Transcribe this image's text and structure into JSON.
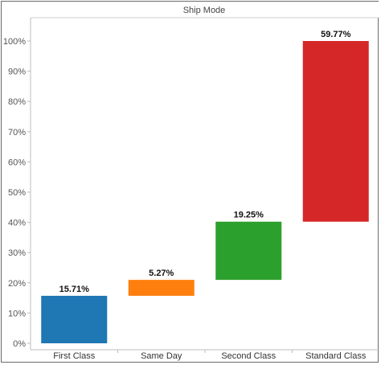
{
  "chart_data": {
    "type": "bar",
    "subtype": "waterfall",
    "title": "Ship Mode",
    "xlabel": "",
    "ylabel": "",
    "categories": [
      "First Class",
      "Same Day",
      "Second Class",
      "Standard Class"
    ],
    "values": [
      15.71,
      5.27,
      19.25,
      59.77
    ],
    "data_labels": [
      "15.71%",
      "5.27%",
      "19.25%",
      "59.77%"
    ],
    "colors": [
      "#1f77b4",
      "#ff7f0e",
      "#2ca02c",
      "#d62728"
    ],
    "ylim": [
      0,
      105
    ],
    "y_ticks": [
      0,
      10,
      20,
      30,
      40,
      50,
      60,
      70,
      80,
      90,
      100
    ],
    "y_tick_labels": [
      "0%",
      "10%",
      "20%",
      "30%",
      "40%",
      "50%",
      "60%",
      "70%",
      "80%",
      "90%",
      "100%"
    ],
    "grid": false,
    "legend": "none"
  }
}
